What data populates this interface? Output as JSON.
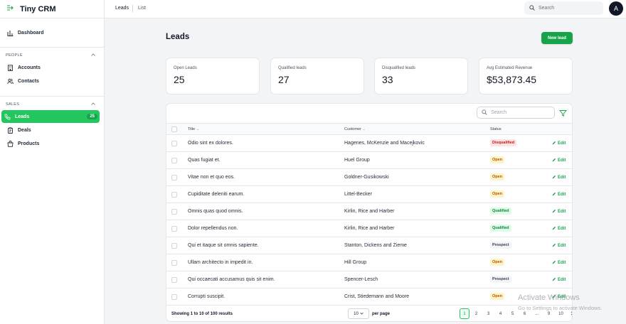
{
  "app": {
    "name": "Tiny CRM"
  },
  "topnav": {
    "leads": "Leads",
    "list": "List",
    "search_placeholder": "Search",
    "avatar_initial": "A"
  },
  "sidebar": {
    "dashboard": "Dashboard",
    "people_header": "PEOPLE",
    "accounts": "Accounts",
    "contacts": "Contacts",
    "sales_header": "SALES",
    "leads": "Leads",
    "leads_badge": "25",
    "deals": "Deals",
    "products": "Products"
  },
  "page": {
    "title": "Leads",
    "new_button": "New lead"
  },
  "stats": [
    {
      "label": "Open Leads",
      "value": "25"
    },
    {
      "label": "Qualified leads",
      "value": "27"
    },
    {
      "label": "Disqualified leads",
      "value": "33"
    },
    {
      "label": "Avg Estimated Revenue",
      "value": "$53,873.45"
    }
  ],
  "table": {
    "search_placeholder": "Search",
    "columns": {
      "title": "Title",
      "customer": "Customer",
      "status": "Status"
    },
    "edit_label": "Edit",
    "rows": [
      {
        "title": "Odio sint ex dolores.",
        "customer": "Hagenes, McKenzie and Macejkovic",
        "status": "Disqualified",
        "kind": "disq"
      },
      {
        "title": "Quas fugiat et.",
        "customer": "Huel Group",
        "status": "Open",
        "kind": "open"
      },
      {
        "title": "Vitae non et quo eos.",
        "customer": "Goldner-Gusikowski",
        "status": "Open",
        "kind": "open"
      },
      {
        "title": "Cupiditate deleniti earum.",
        "customer": "Littel-Becker",
        "status": "Open",
        "kind": "open"
      },
      {
        "title": "Omnis quas quod omnis.",
        "customer": "Kirlin, Rice and Harber",
        "status": "Qualified",
        "kind": "qual"
      },
      {
        "title": "Dolor repellendus non.",
        "customer": "Kirlin, Rice and Harber",
        "status": "Qualified",
        "kind": "qual"
      },
      {
        "title": "Qui et itaque sit omnis sapiente.",
        "customer": "Stanton, Dickens and Zieme",
        "status": "Prospect",
        "kind": "pros"
      },
      {
        "title": "Ullam architecto in impedit in.",
        "customer": "Hill Group",
        "status": "Open",
        "kind": "open"
      },
      {
        "title": "Qui occaecati accusamus quis sit enim.",
        "customer": "Spencer-Lesch",
        "status": "Prospect",
        "kind": "pros"
      },
      {
        "title": "Corrupti suscipit.",
        "customer": "Crist, Stiedemann and Moore",
        "status": "Open",
        "kind": "open"
      }
    ],
    "summary": "Showing 1 to 10 of 100 results",
    "per_page_value": "10",
    "per_page_label": "per page",
    "pages": [
      "1",
      "2",
      "3",
      "4",
      "5",
      "6",
      "...",
      "9",
      "10"
    ],
    "current_page": "1"
  },
  "watermark": {
    "line1": "Activate Windows",
    "line2": "Go to Settings to activate Windows."
  }
}
